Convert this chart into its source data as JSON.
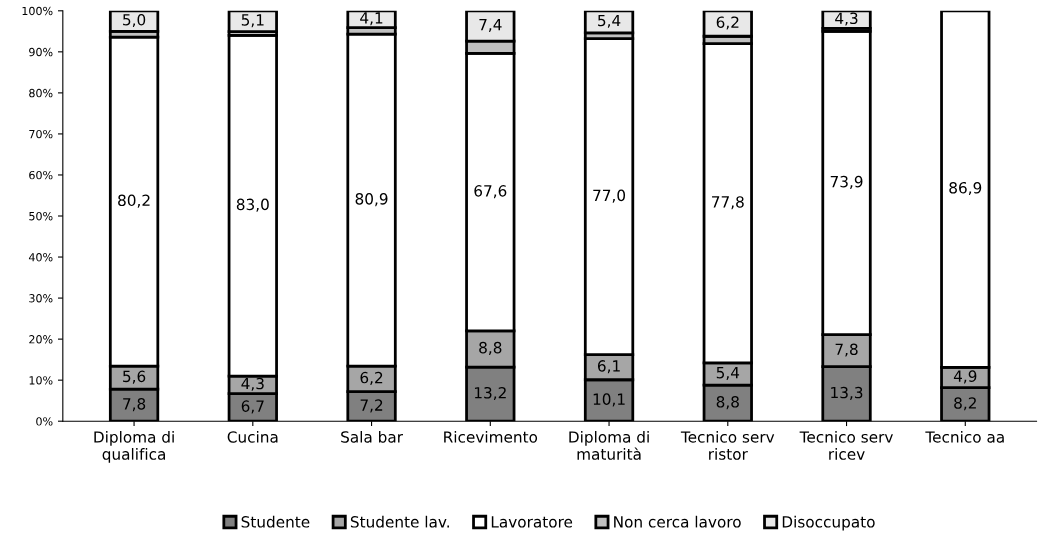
{
  "chart_data": {
    "type": "bar",
    "stacked": true,
    "categories": [
      "Diploma di\nqualifica",
      "Cucina",
      "Sala bar",
      "Ricevimento",
      "Diploma di\nmaturità",
      "Tecnico serv\nristor",
      "Tecnico serv\nricev",
      "Tecnico aa"
    ],
    "series": [
      {
        "name": "Studente",
        "color": "#808080",
        "values": [
          7.8,
          6.7,
          7.2,
          13.2,
          10.1,
          8.8,
          13.3,
          8.2
        ],
        "value_labels": [
          "7,8",
          "6,7",
          "7,2",
          "13,2",
          "10,1",
          "8,8",
          "13,3",
          "8,2"
        ]
      },
      {
        "name": "Studente lav.",
        "color": "#a6a6a6",
        "values": [
          5.6,
          4.3,
          6.2,
          8.8,
          6.1,
          5.4,
          7.8,
          4.9
        ],
        "value_labels": [
          "5,6",
          "4,3",
          "6,2",
          "8,8",
          "6,1",
          "5,4",
          "7,8",
          "4,9"
        ]
      },
      {
        "name": "Lavoratore",
        "color": "#ffffff",
        "values": [
          80.2,
          83.0,
          80.9,
          67.6,
          77.0,
          77.8,
          73.9,
          86.9
        ],
        "value_labels": [
          "80,2",
          "83,0",
          "80,9",
          "67,6",
          "77,0",
          "77,8",
          "73,9",
          "86,9"
        ]
      },
      {
        "name": "Non cerca lavoro",
        "color": "#c0c0c0",
        "values": [
          1.4,
          0.9,
          1.6,
          3.0,
          1.4,
          1.8,
          0.7,
          null
        ]
      },
      {
        "name": "Disoccupato",
        "color": "#e8e8e8",
        "values": [
          5.0,
          5.1,
          4.1,
          7.4,
          5.4,
          6.2,
          4.3,
          null
        ],
        "value_labels": [
          "5,0",
          "5,1",
          "4,1",
          "7,4",
          "5,4",
          "6,2",
          "4,3",
          null
        ]
      }
    ],
    "ylim": [
      0,
      100
    ],
    "yticks": [
      {
        "value": 0,
        "label": "0%"
      },
      {
        "value": 10,
        "label": "10%"
      },
      {
        "value": 20,
        "label": "20%"
      },
      {
        "value": 30,
        "label": "30%"
      },
      {
        "value": 40,
        "label": "40%"
      },
      {
        "value": 50,
        "label": "50%"
      },
      {
        "value": 60,
        "label": "60%"
      },
      {
        "value": 70,
        "label": "70%"
      },
      {
        "value": 80,
        "label": "80%"
      },
      {
        "value": 90,
        "label": "90%"
      },
      {
        "value": 100,
        "label": "100%"
      }
    ],
    "grid": false,
    "legend": "bottom"
  }
}
